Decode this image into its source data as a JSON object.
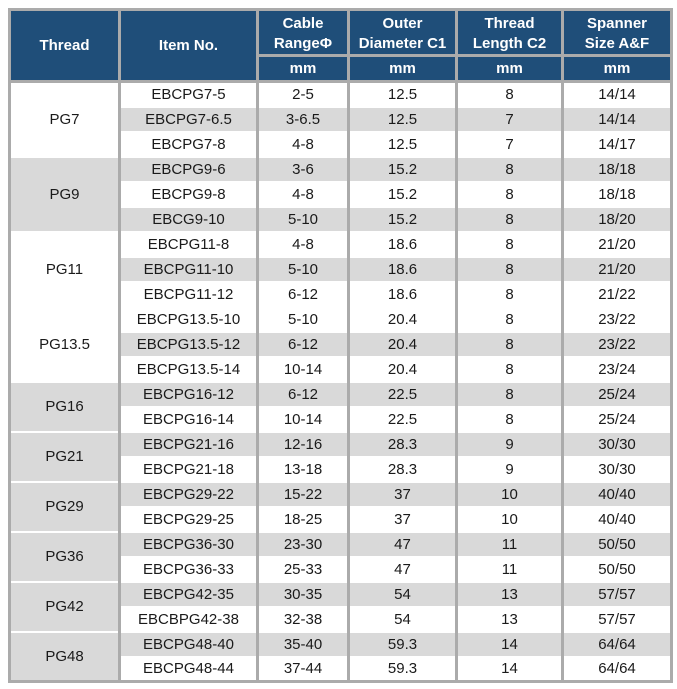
{
  "colors": {
    "header_bg": "#1F4E79",
    "header_text": "#FFFFFF",
    "row_shade": "#D9D9D9",
    "border": "#ABABAB",
    "text": "#1A1A1A"
  },
  "table": {
    "columns": [
      {
        "label": "Thread"
      },
      {
        "label": "Item No."
      },
      {
        "label": "Cable\nRangeΦ",
        "unit": "mm"
      },
      {
        "label": "Outer\nDiameter C1",
        "unit": "mm"
      },
      {
        "label": "Thread\nLength C2",
        "unit": "mm"
      },
      {
        "label": "Spanner\nSize A&F",
        "unit": "mm"
      }
    ],
    "groups": [
      {
        "thread": "PG7",
        "shade": "light",
        "rows": [
          {
            "item": "EBCPG7-5",
            "cable_range": "2-5",
            "outer_diameter_c1": "12.5",
            "thread_length_c2": "8",
            "spanner_size_af": "14/14",
            "shade": "light"
          },
          {
            "item": "EBCPG7-6.5",
            "cable_range": "3-6.5",
            "outer_diameter_c1": "12.5",
            "thread_length_c2": "7",
            "spanner_size_af": "14/14",
            "shade": "dark"
          },
          {
            "item": "EBCPG7-8",
            "cable_range": "4-8",
            "outer_diameter_c1": "12.5",
            "thread_length_c2": "7",
            "spanner_size_af": "14/17",
            "shade": "light"
          }
        ]
      },
      {
        "thread": "PG9",
        "shade": "dark",
        "rows": [
          {
            "item": "EBCPG9-6",
            "cable_range": "3-6",
            "outer_diameter_c1": "15.2",
            "thread_length_c2": "8",
            "spanner_size_af": "18/18",
            "shade": "dark"
          },
          {
            "item": "EBCPG9-8",
            "cable_range": "4-8",
            "outer_diameter_c1": "15.2",
            "thread_length_c2": "8",
            "spanner_size_af": "18/18",
            "shade": "light"
          },
          {
            "item": "EBCG9-10",
            "cable_range": "5-10",
            "outer_diameter_c1": "15.2",
            "thread_length_c2": "8",
            "spanner_size_af": "18/20",
            "shade": "dark"
          }
        ]
      },
      {
        "thread": "PG11",
        "shade": "light",
        "rows": [
          {
            "item": "EBCPG11-8",
            "cable_range": "4-8",
            "outer_diameter_c1": "18.6",
            "thread_length_c2": "8",
            "spanner_size_af": "21/20",
            "shade": "light"
          },
          {
            "item": "EBCPG11-10",
            "cable_range": "5-10",
            "outer_diameter_c1": "18.6",
            "thread_length_c2": "8",
            "spanner_size_af": "21/20",
            "shade": "dark"
          },
          {
            "item": "EBCPG11-12",
            "cable_range": "6-12",
            "outer_diameter_c1": "18.6",
            "thread_length_c2": "8",
            "spanner_size_af": "21/22",
            "shade": "light"
          }
        ]
      },
      {
        "thread": "PG13.5",
        "shade": "light",
        "rows": [
          {
            "item": "EBCPG13.5-10",
            "cable_range": "5-10",
            "outer_diameter_c1": "20.4",
            "thread_length_c2": "8",
            "spanner_size_af": "23/22",
            "shade": "light"
          },
          {
            "item": "EBCPG13.5-12",
            "cable_range": "6-12",
            "outer_diameter_c1": "20.4",
            "thread_length_c2": "8",
            "spanner_size_af": "23/22",
            "shade": "dark"
          },
          {
            "item": "EBCPG13.5-14",
            "cable_range": "10-14",
            "outer_diameter_c1": "20.4",
            "thread_length_c2": "8",
            "spanner_size_af": "23/24",
            "shade": "light"
          }
        ]
      },
      {
        "thread": "PG16",
        "shade": "dark",
        "rows": [
          {
            "item": "EBCPG16-12",
            "cable_range": "6-12",
            "outer_diameter_c1": "22.5",
            "thread_length_c2": "8",
            "spanner_size_af": "25/24",
            "shade": "dark"
          },
          {
            "item": "EBCPG16-14",
            "cable_range": "10-14",
            "outer_diameter_c1": "22.5",
            "thread_length_c2": "8",
            "spanner_size_af": "25/24",
            "shade": "light"
          }
        ]
      },
      {
        "thread": "PG21",
        "shade": "dark",
        "rows": [
          {
            "item": "EBCPG21-16",
            "cable_range": "12-16",
            "outer_diameter_c1": "28.3",
            "thread_length_c2": "9",
            "spanner_size_af": "30/30",
            "shade": "dark"
          },
          {
            "item": "EBCPG21-18",
            "cable_range": "13-18",
            "outer_diameter_c1": "28.3",
            "thread_length_c2": "9",
            "spanner_size_af": "30/30",
            "shade": "light"
          }
        ]
      },
      {
        "thread": "PG29",
        "shade": "dark",
        "rows": [
          {
            "item": "EBCPG29-22",
            "cable_range": "15-22",
            "outer_diameter_c1": "37",
            "thread_length_c2": "10",
            "spanner_size_af": "40/40",
            "shade": "dark"
          },
          {
            "item": "EBCPG29-25",
            "cable_range": "18-25",
            "outer_diameter_c1": "37",
            "thread_length_c2": "10",
            "spanner_size_af": "40/40",
            "shade": "light"
          }
        ]
      },
      {
        "thread": "PG36",
        "shade": "dark",
        "rows": [
          {
            "item": "EBCPG36-30",
            "cable_range": "23-30",
            "outer_diameter_c1": "47",
            "thread_length_c2": "11",
            "spanner_size_af": "50/50",
            "shade": "dark"
          },
          {
            "item": "EBCPG36-33",
            "cable_range": "25-33",
            "outer_diameter_c1": "47",
            "thread_length_c2": "11",
            "spanner_size_af": "50/50",
            "shade": "light"
          }
        ]
      },
      {
        "thread": "PG42",
        "shade": "dark",
        "rows": [
          {
            "item": "EBCPG42-35",
            "cable_range": "30-35",
            "outer_diameter_c1": "54",
            "thread_length_c2": "13",
            "spanner_size_af": "57/57",
            "shade": "dark"
          },
          {
            "item": "EBCBPG42-38",
            "cable_range": "32-38",
            "outer_diameter_c1": "54",
            "thread_length_c2": "13",
            "spanner_size_af": "57/57",
            "shade": "light"
          }
        ]
      },
      {
        "thread": "PG48",
        "shade": "dark",
        "rows": [
          {
            "item": "EBCPG48-40",
            "cable_range": "35-40",
            "outer_diameter_c1": "59.3",
            "thread_length_c2": "14",
            "spanner_size_af": "64/64",
            "shade": "dark"
          },
          {
            "item": "EBCPG48-44",
            "cable_range": "37-44",
            "outer_diameter_c1": "59.3",
            "thread_length_c2": "14",
            "spanner_size_af": "64/64",
            "shade": "light"
          }
        ]
      }
    ]
  }
}
